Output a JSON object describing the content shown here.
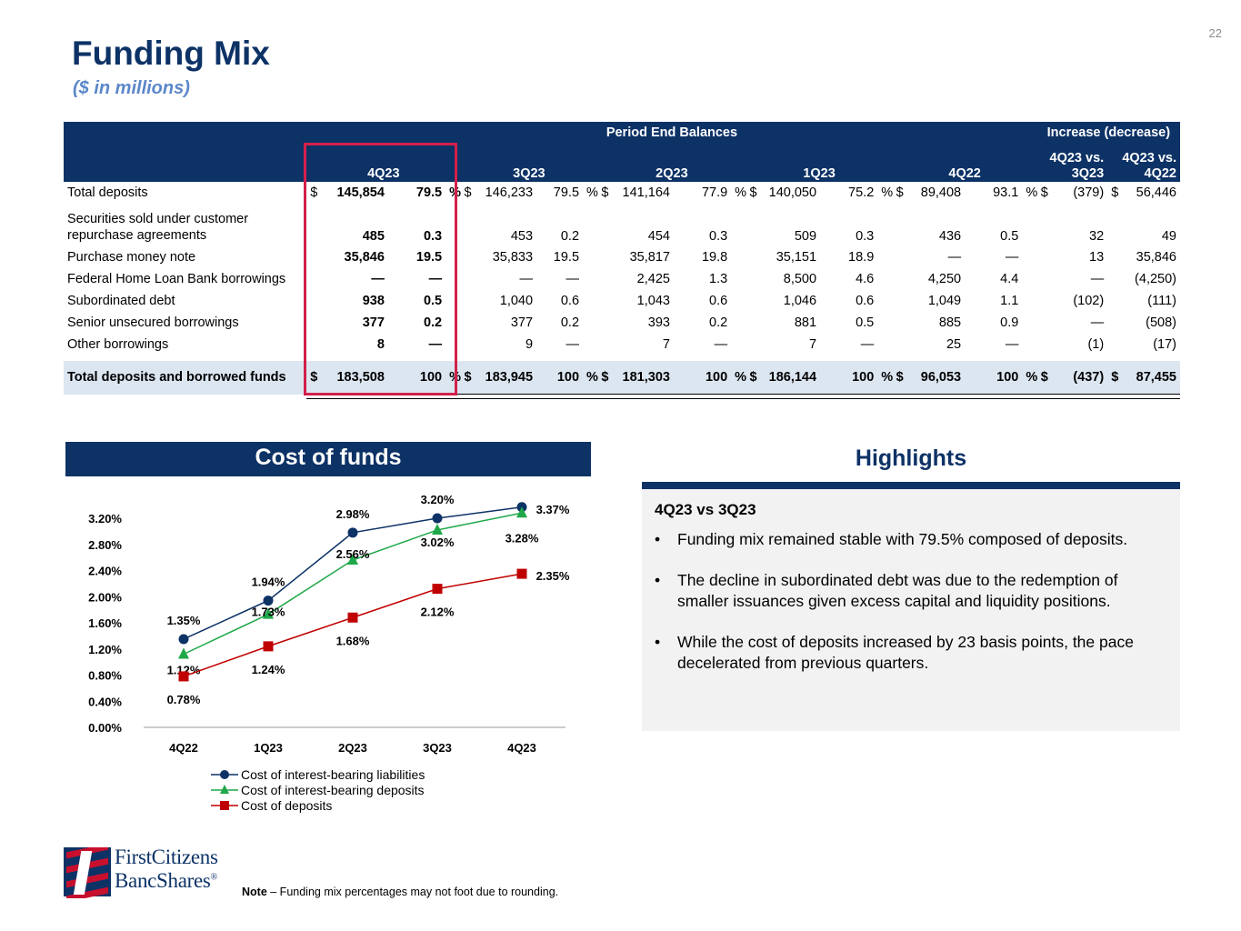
{
  "page_number": "22",
  "title": "Funding Mix",
  "subtitle": "($ in millions)",
  "table": {
    "group_header_balances": "Period End Balances",
    "group_header_change": "Increase (decrease)",
    "period_headers": [
      "4Q23",
      "3Q23",
      "2Q23",
      "1Q23",
      "4Q22"
    ],
    "change_headers": [
      [
        "4Q23 vs.",
        "3Q23"
      ],
      [
        "4Q23 vs.",
        "4Q22"
      ]
    ],
    "rows": [
      {
        "label": "Total deposits",
        "cells": [
          "$",
          "145,854",
          "79.5",
          "%",
          "$",
          "146,233",
          "79.5",
          "%",
          "$",
          "141,164",
          "77.9",
          "%",
          "$",
          "140,050",
          "75.2",
          "%",
          "$",
          "89,408",
          "93.1",
          "%",
          "$",
          "(379)",
          "$",
          "56,446"
        ]
      },
      {
        "label": "Securities sold under customer repurchase agreements",
        "cells": [
          "",
          "485",
          "0.3",
          "",
          "",
          "453",
          "0.2",
          "",
          "",
          "454",
          "0.3",
          "",
          "",
          "509",
          "0.3",
          "",
          "",
          "436",
          "0.5",
          "",
          "",
          "32",
          "",
          "49"
        ]
      },
      {
        "label": "Purchase money note",
        "cells": [
          "",
          "35,846",
          "19.5",
          "",
          "",
          "35,833",
          "19.5",
          "",
          "",
          "35,817",
          "19.8",
          "",
          "",
          "35,151",
          "18.9",
          "",
          "",
          "—",
          "—",
          "",
          "",
          "13",
          "",
          "35,846"
        ]
      },
      {
        "label": "Federal Home Loan Bank borrowings",
        "cells": [
          "",
          "—",
          "—",
          "",
          "",
          "—",
          "—",
          "",
          "",
          "2,425",
          "1.3",
          "",
          "",
          "8,500",
          "4.6",
          "",
          "",
          "4,250",
          "4.4",
          "",
          "",
          "—",
          "",
          "(4,250)"
        ]
      },
      {
        "label": "Subordinated debt",
        "cells": [
          "",
          "938",
          "0.5",
          "",
          "",
          "1,040",
          "0.6",
          "",
          "",
          "1,043",
          "0.6",
          "",
          "",
          "1,046",
          "0.6",
          "",
          "",
          "1,049",
          "1.1",
          "",
          "",
          "(102)",
          "",
          "(111)"
        ]
      },
      {
        "label": "Senior unsecured borrowings",
        "cells": [
          "",
          "377",
          "0.2",
          "",
          "",
          "377",
          "0.2",
          "",
          "",
          "393",
          "0.2",
          "",
          "",
          "881",
          "0.5",
          "",
          "",
          "885",
          "0.9",
          "",
          "",
          "—",
          "",
          "(508)"
        ]
      },
      {
        "label": "Other borrowings",
        "cells": [
          "",
          "8",
          "—",
          "",
          "",
          "9",
          "—",
          "",
          "",
          "7",
          "—",
          "",
          "",
          "7",
          "—",
          "",
          "",
          "25",
          "—",
          "",
          "",
          "(1)",
          "",
          "(17)"
        ]
      }
    ],
    "total_row": {
      "label": "Total deposits and borrowed funds",
      "cells": [
        "$",
        "183,508",
        "100",
        "%",
        "$",
        "183,945",
        "100",
        "%",
        "$",
        "181,303",
        "100",
        "%",
        "$",
        "186,144",
        "100",
        "%",
        "$",
        "96,053",
        "100",
        "%",
        "$",
        "(437)",
        "$",
        "87,455"
      ]
    }
  },
  "cost_of_funds_title": "Cost of funds",
  "chart_data": {
    "type": "line",
    "categories": [
      "4Q22",
      "1Q23",
      "2Q23",
      "3Q23",
      "4Q23"
    ],
    "y_ticks": [
      "0.00%",
      "0.40%",
      "0.80%",
      "1.20%",
      "1.60%",
      "2.00%",
      "2.40%",
      "2.80%",
      "3.20%"
    ],
    "ylim": [
      0,
      3.2
    ],
    "series": [
      {
        "name": "Cost of interest-bearing liabilities",
        "values": [
          1.35,
          1.94,
          2.98,
          3.2,
          3.37
        ],
        "labels": [
          "1.35%",
          "1.94%",
          "2.98%",
          "3.20%",
          "3.37%"
        ],
        "color": "#0d3266",
        "marker": "circle"
      },
      {
        "name": "Cost of interest-bearing deposits",
        "values": [
          1.12,
          1.73,
          2.56,
          3.02,
          3.28
        ],
        "labels": [
          "1.12%",
          "1.73%",
          "2.56%",
          "3.02%",
          "3.28%"
        ],
        "color": "#1fa849",
        "marker": "triangle"
      },
      {
        "name": "Cost of deposits",
        "values": [
          0.78,
          1.24,
          1.68,
          2.12,
          2.35
        ],
        "labels": [
          "0.78%",
          "1.24%",
          "1.68%",
          "2.12%",
          "2.35%"
        ],
        "color": "#c00000",
        "marker": "square"
      }
    ],
    "legend_position": "bottom"
  },
  "highlights": {
    "title": "Highlights",
    "subtitle": "4Q23 vs 3Q23",
    "bullets": [
      "Funding mix remained stable with 79.5% composed of deposits.",
      "The decline in subordinated debt was due to the redemption of smaller issuances given excess capital and liquidity positions.",
      "While the cost of deposits increased by 23 basis points, the pace decelerated from previous quarters."
    ],
    "bullet_glyph": "•"
  },
  "logo": {
    "line1": "FirstCitizens",
    "line2": "BancShares",
    "mark": "®"
  },
  "note": {
    "label": "Note",
    "text": " – Funding mix percentages may not foot due to rounding."
  },
  "colors": {
    "navy": "#0d3266",
    "light_blue": "#5b87c9",
    "highlight_red": "#d3204a",
    "total_row_bg": "#dce6f1",
    "panel_bg": "#f2f2f2"
  }
}
